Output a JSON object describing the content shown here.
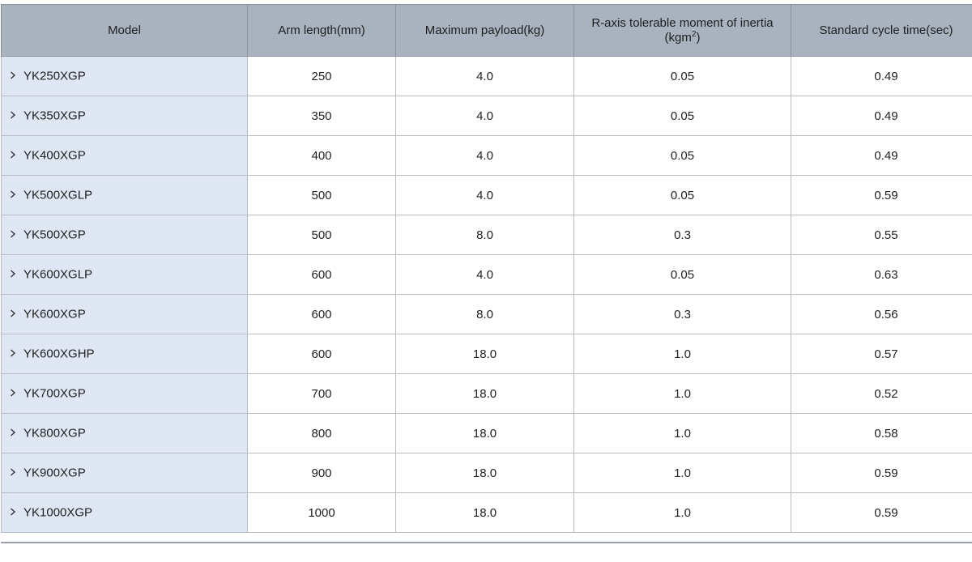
{
  "header": {
    "model": "Model",
    "arm_length": "Arm length(mm)",
    "payload": "Maximum payload(kg)",
    "inertia_prefix": "R-axis tolerable moment of inertia",
    "inertia_unit": "(kgm",
    "inertia_exp": "2",
    "inertia_close": ")",
    "cycle_time": "Standard cycle time(sec)"
  },
  "icons": {
    "row_expander": "chevron-right-icon"
  },
  "rows": [
    {
      "model": "YK250XGP",
      "arm": "250",
      "payload": "4.0",
      "inertia": "0.05",
      "cycle": "0.49"
    },
    {
      "model": "YK350XGP",
      "arm": "350",
      "payload": "4.0",
      "inertia": "0.05",
      "cycle": "0.49"
    },
    {
      "model": "YK400XGP",
      "arm": "400",
      "payload": "4.0",
      "inertia": "0.05",
      "cycle": "0.49"
    },
    {
      "model": "YK500XGLP",
      "arm": "500",
      "payload": "4.0",
      "inertia": "0.05",
      "cycle": "0.59"
    },
    {
      "model": "YK500XGP",
      "arm": "500",
      "payload": "8.0",
      "inertia": "0.3",
      "cycle": "0.55"
    },
    {
      "model": "YK600XGLP",
      "arm": "600",
      "payload": "4.0",
      "inertia": "0.05",
      "cycle": "0.63"
    },
    {
      "model": "YK600XGP",
      "arm": "600",
      "payload": "8.0",
      "inertia": "0.3",
      "cycle": "0.56"
    },
    {
      "model": "YK600XGHP",
      "arm": "600",
      "payload": "18.0",
      "inertia": "1.0",
      "cycle": "0.57"
    },
    {
      "model": "YK700XGP",
      "arm": "700",
      "payload": "18.0",
      "inertia": "1.0",
      "cycle": "0.52"
    },
    {
      "model": "YK800XGP",
      "arm": "800",
      "payload": "18.0",
      "inertia": "1.0",
      "cycle": "0.58"
    },
    {
      "model": "YK900XGP",
      "arm": "900",
      "payload": "18.0",
      "inertia": "1.0",
      "cycle": "0.59"
    },
    {
      "model": "YK1000XGP",
      "arm": "1000",
      "payload": "18.0",
      "inertia": "1.0",
      "cycle": "0.59"
    }
  ]
}
